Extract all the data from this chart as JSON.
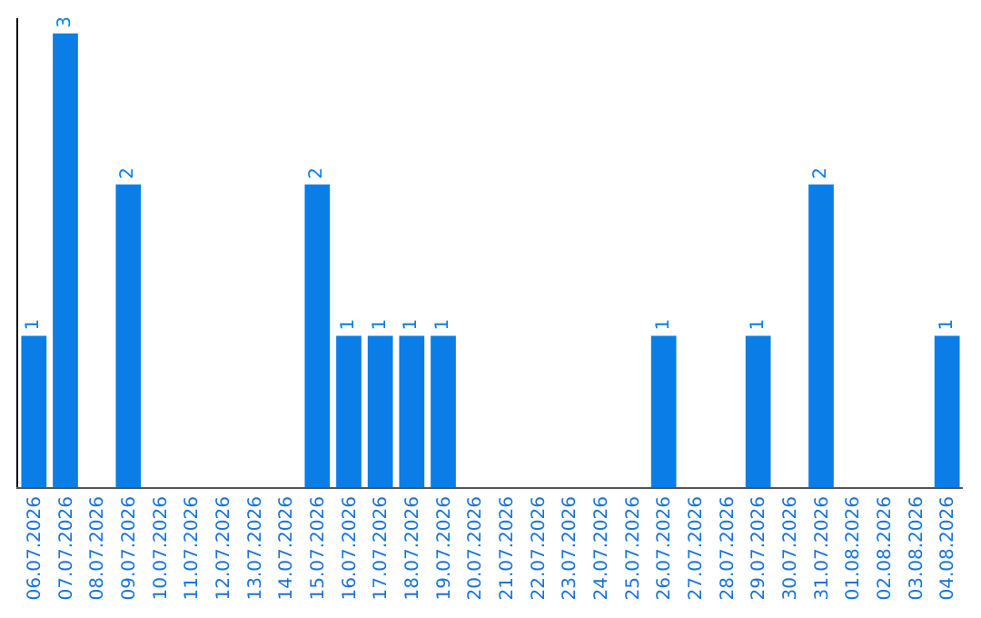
{
  "chart_data": {
    "type": "bar",
    "categories": [
      "06.07.2026",
      "07.07.2026",
      "08.07.2026",
      "09.07.2026",
      "10.07.2026",
      "11.07.2026",
      "12.07.2026",
      "13.07.2026",
      "14.07.2026",
      "15.07.2026",
      "16.07.2026",
      "17.07.2026",
      "18.07.2026",
      "19.07.2026",
      "20.07.2026",
      "21.07.2026",
      "22.07.2026",
      "23.07.2026",
      "24.07.2026",
      "25.07.2026",
      "26.07.2026",
      "27.07.2026",
      "28.07.2026",
      "29.07.2026",
      "30.07.2026",
      "31.07.2026",
      "01.08.2026",
      "02.08.2026",
      "03.08.2026",
      "04.08.2026"
    ],
    "values": [
      1,
      3,
      0,
      2,
      0,
      0,
      0,
      0,
      0,
      2,
      1,
      1,
      1,
      1,
      0,
      0,
      0,
      0,
      0,
      0,
      1,
      0,
      0,
      1,
      0,
      2,
      0,
      0,
      0,
      1
    ],
    "value_labels": [
      "1",
      "3",
      null,
      "2",
      null,
      null,
      null,
      null,
      null,
      "2",
      "1",
      "1",
      "1",
      "1",
      null,
      null,
      null,
      null,
      null,
      null,
      "1",
      null,
      null,
      "1",
      null,
      "2",
      null,
      null,
      null,
      "1"
    ],
    "color": "#0a7ee6",
    "ylim": [
      0,
      3.1
    ],
    "tick_labels": "x",
    "legend": false
  }
}
